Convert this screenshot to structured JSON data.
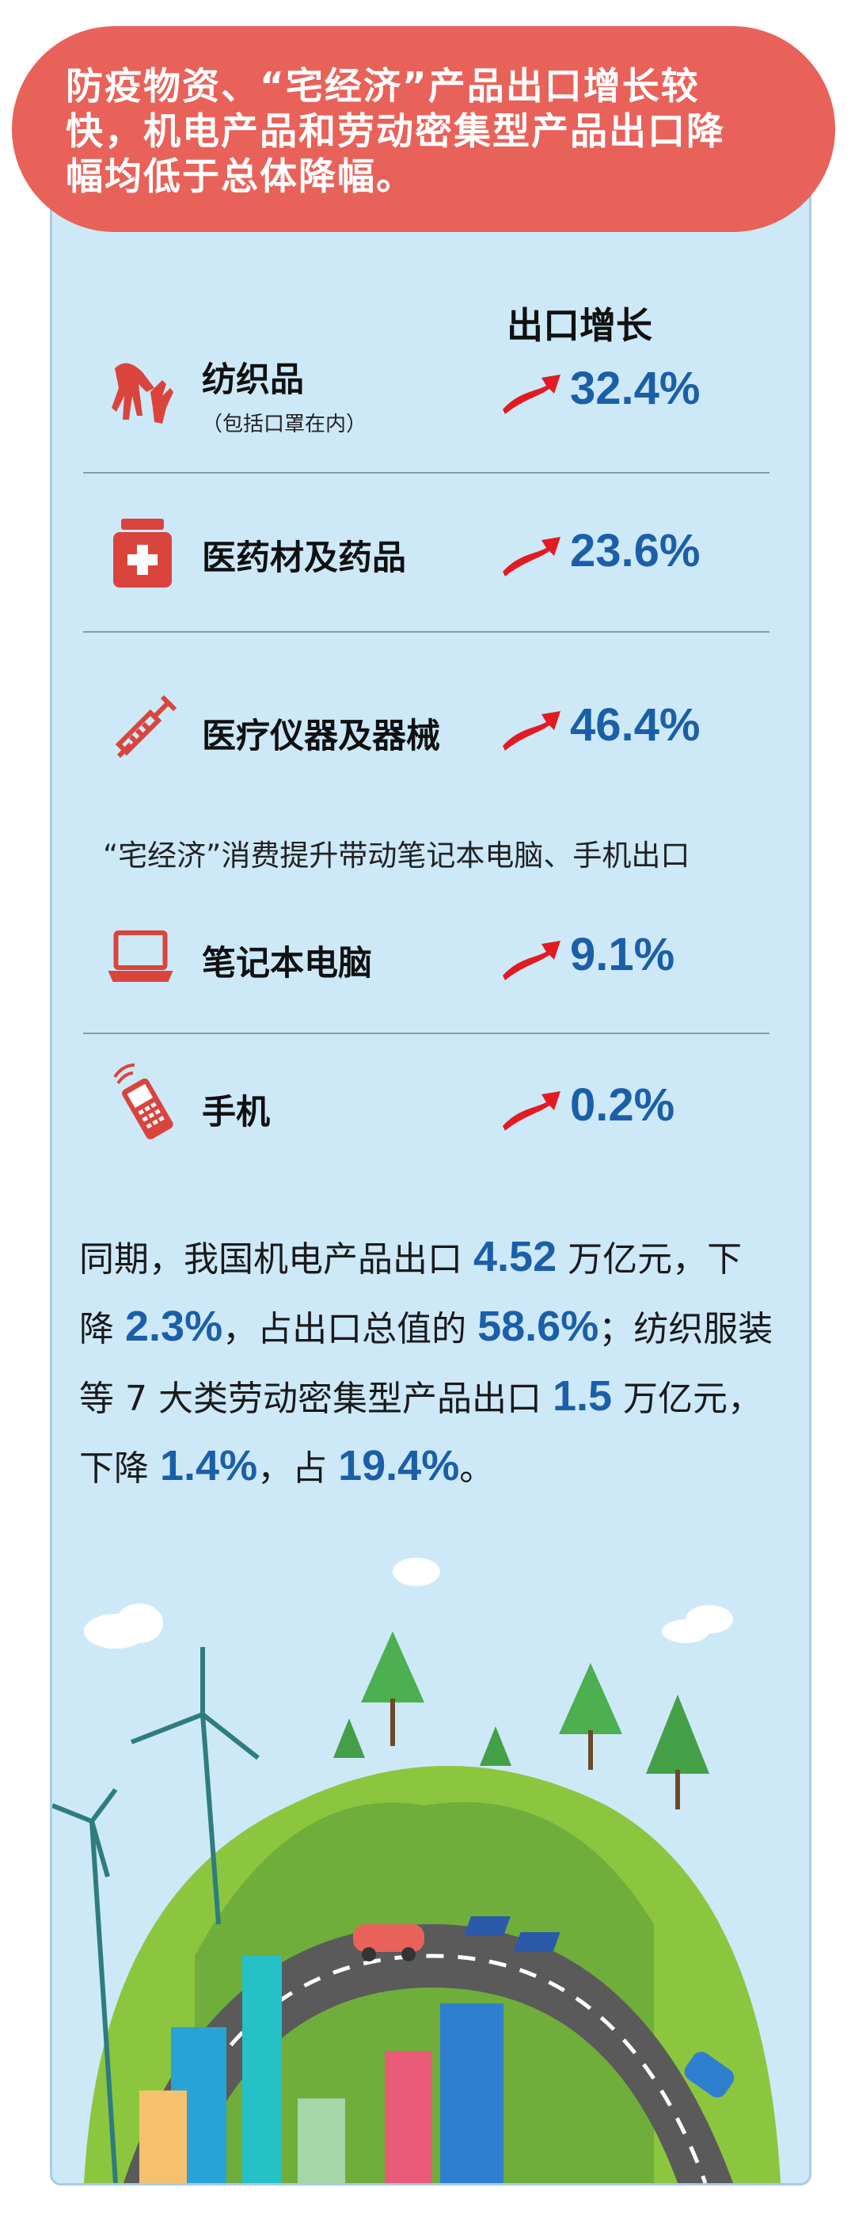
{
  "banner": {
    "line1": "防疫物资、“宅经济”产品出口增长较",
    "line2": "快，机电产品和劳动密集型产品出口降",
    "line3": "幅均低于总体降幅。"
  },
  "column_header": "出口增长",
  "items": [
    {
      "label": "纺织品",
      "note": "（包括口罩在内）",
      "value": "32.4%",
      "icon": "hands-icon"
    },
    {
      "label": "医药材及药品",
      "value": "23.6%",
      "icon": "medicine-box-icon"
    },
    {
      "label": "医疗仪器及器械",
      "value": "46.4%",
      "icon": "syringe-icon"
    },
    {
      "label": "笔记本电脑",
      "value": "9.1%",
      "icon": "laptop-icon"
    },
    {
      "label": "手机",
      "value": "0.2%",
      "icon": "mobile-phone-icon"
    }
  ],
  "subtitle": "“宅经济”消费提升带动笔记本电脑、手机出口",
  "paragraph": {
    "t1": "同期，我国机电产品出口",
    "v1": "4.52",
    "t2": "万亿元，下降",
    "v2": "2.3%",
    "t3": "，占出口总值的",
    "v3": "58.6%",
    "t4": "；纺织服装等 7 大类劳动密集型产品出口",
    "v4": "1.5",
    "t5": "万亿元，下降",
    "v5": "1.4%",
    "t6": "，占",
    "v6": "19.4%",
    "t7": "。"
  },
  "colors": {
    "banner": "#e8625a",
    "panel": "#cde9f8",
    "value": "#1b5fa8",
    "icon": "#d9453d"
  }
}
